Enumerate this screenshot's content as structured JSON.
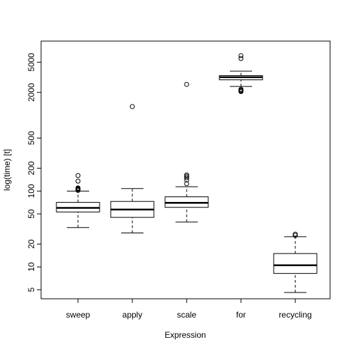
{
  "chart_data": {
    "type": "boxplot",
    "title": "",
    "xlabel": "Expression",
    "ylabel": "log(time) [t]",
    "y_scale": "log",
    "ylim": [
      3.8,
      9500
    ],
    "y_ticks": [
      5,
      10,
      20,
      50,
      100,
      200,
      500,
      2000,
      5000
    ],
    "y_tick_labels": [
      "5",
      "10",
      "20",
      "50",
      "100",
      "200",
      "500",
      "2000",
      "5000"
    ],
    "grid": false,
    "legend": "none",
    "categories": [
      "sweep",
      "apply",
      "scale",
      "for",
      "recycling"
    ],
    "series": [
      {
        "whisker_low": 33,
        "q1": 53,
        "median": 60,
        "q3": 71,
        "whisker_high": 100,
        "outliers": [
          102,
          104,
          106,
          108,
          110,
          135,
          160
        ]
      },
      {
        "whisker_low": 28,
        "q1": 45,
        "median": 57,
        "q3": 73,
        "whisker_high": 108,
        "outliers": [
          1300
        ]
      },
      {
        "whisker_low": 39,
        "q1": 61,
        "median": 70,
        "q3": 84,
        "whisker_high": 114,
        "outliers": [
          125,
          140,
          150,
          157,
          163,
          2550
        ]
      },
      {
        "whisker_low": 2400,
        "q1": 2930,
        "median": 3170,
        "q3": 3330,
        "whisker_high": 3820,
        "outliers": [
          2050,
          2100,
          2150,
          2200,
          5600,
          6100
        ]
      },
      {
        "whisker_low": 4.6,
        "q1": 8.2,
        "median": 10.5,
        "q3": 15,
        "whisker_high": 25,
        "outliers": [
          26,
          27
        ]
      }
    ]
  }
}
